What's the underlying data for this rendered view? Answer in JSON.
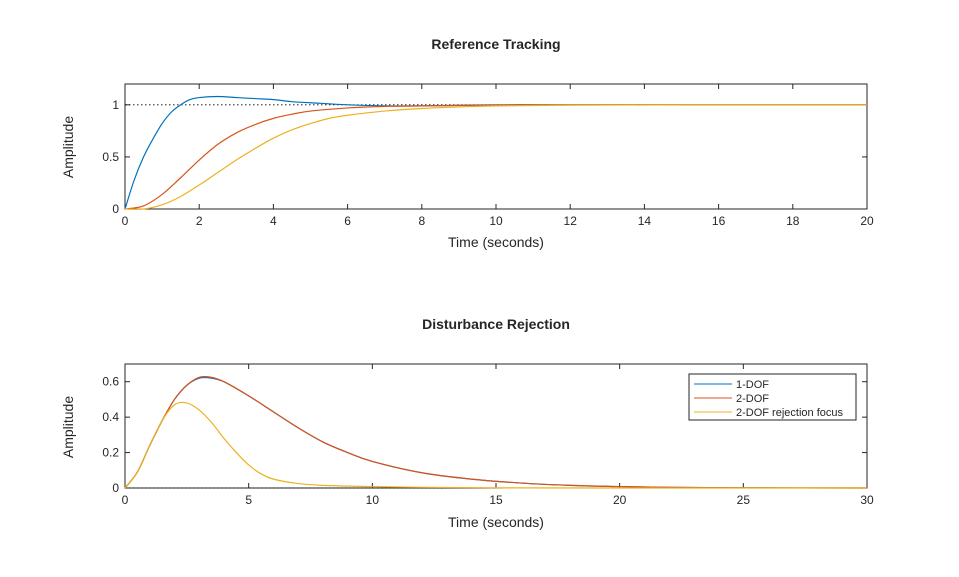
{
  "chart_data": [
    {
      "type": "line",
      "title": "Reference Tracking",
      "xlabel": "Time (seconds)",
      "ylabel": "Amplitude",
      "xlim": [
        0,
        20
      ],
      "ylim": [
        0,
        1.2
      ],
      "xticks": [
        "0",
        "2",
        "4",
        "6",
        "8",
        "10",
        "12",
        "14",
        "16",
        "18",
        "20"
      ],
      "yticks": [
        "0",
        "0.5",
        "1"
      ],
      "xtick_values": [
        0,
        2,
        4,
        6,
        8,
        10,
        12,
        14,
        16,
        18,
        20
      ],
      "ytick_values": [
        0,
        0.5,
        1
      ],
      "reference_line": 1,
      "series": [
        {
          "name": "1-DOF",
          "color": "#0072BD",
          "x": [
            0,
            0.25,
            0.5,
            0.75,
            1,
            1.25,
            1.5,
            1.75,
            2,
            2.5,
            3,
            3.5,
            4,
            4.5,
            5,
            6,
            7,
            8,
            10,
            12,
            15,
            20
          ],
          "y": [
            0,
            0.28,
            0.5,
            0.67,
            0.82,
            0.93,
            1.0,
            1.05,
            1.07,
            1.08,
            1.07,
            1.06,
            1.05,
            1.03,
            1.02,
            1.0,
            0.99,
            0.99,
            1.0,
            1.0,
            1.0,
            1.0
          ]
        },
        {
          "name": "2-DOF",
          "color": "#D95319",
          "x": [
            0,
            0.5,
            1,
            1.5,
            2,
            2.5,
            3,
            3.5,
            4,
            4.5,
            5,
            6,
            7,
            8,
            10,
            12,
            15,
            20
          ],
          "y": [
            0,
            0.03,
            0.14,
            0.3,
            0.47,
            0.62,
            0.73,
            0.81,
            0.87,
            0.91,
            0.94,
            0.97,
            0.985,
            0.99,
            0.997,
            1.0,
            1.0,
            1.0
          ]
        },
        {
          "name": "2-DOF rejection focus",
          "color": "#EDB120",
          "x": [
            0,
            0.5,
            1,
            1.5,
            2,
            2.5,
            3,
            3.5,
            4,
            4.5,
            5,
            5.5,
            6,
            7,
            8,
            9,
            10,
            12,
            15,
            20
          ],
          "y": [
            0,
            0.0,
            0.04,
            0.12,
            0.23,
            0.35,
            0.47,
            0.58,
            0.68,
            0.76,
            0.82,
            0.87,
            0.9,
            0.94,
            0.965,
            0.98,
            0.99,
            0.997,
            1.0,
            1.0
          ]
        }
      ]
    },
    {
      "type": "line",
      "title": "Disturbance Rejection",
      "xlabel": "Time (seconds)",
      "ylabel": "Amplitude",
      "xlim": [
        0,
        30
      ],
      "ylim": [
        0,
        0.7
      ],
      "xticks": [
        "0",
        "5",
        "10",
        "15",
        "20",
        "25",
        "30"
      ],
      "yticks": [
        "0",
        "0.2",
        "0.4",
        "0.6"
      ],
      "xtick_values": [
        0,
        5,
        10,
        15,
        20,
        25,
        30
      ],
      "ytick_values": [
        0,
        0.2,
        0.4,
        0.6
      ],
      "reference_line": 0,
      "legend": {
        "position": "top-right",
        "entries": [
          "1-DOF",
          "2-DOF",
          "2-DOF rejection focus"
        ]
      },
      "series": [
        {
          "name": "1-DOF",
          "color": "#0072BD",
          "x": [
            0,
            0.5,
            1,
            1.5,
            2,
            2.5,
            3,
            3.5,
            4,
            5,
            6,
            7,
            8,
            9,
            10,
            12,
            14,
            16,
            18,
            20,
            22,
            25,
            30
          ],
          "y": [
            0,
            0.09,
            0.24,
            0.38,
            0.5,
            0.58,
            0.62,
            0.62,
            0.6,
            0.52,
            0.43,
            0.34,
            0.26,
            0.2,
            0.15,
            0.086,
            0.05,
            0.028,
            0.015,
            0.008,
            0.004,
            0.001,
            0
          ]
        },
        {
          "name": "2-DOF",
          "color": "#D95319",
          "x": [
            0,
            0.5,
            1,
            1.5,
            2,
            2.5,
            3,
            3.5,
            4,
            5,
            6,
            7,
            8,
            9,
            10,
            12,
            14,
            16,
            18,
            20,
            22,
            25,
            30
          ],
          "y": [
            0,
            0.09,
            0.24,
            0.38,
            0.5,
            0.58,
            0.625,
            0.625,
            0.6,
            0.52,
            0.43,
            0.34,
            0.26,
            0.2,
            0.15,
            0.086,
            0.05,
            0.028,
            0.015,
            0.008,
            0.004,
            0.001,
            0
          ]
        },
        {
          "name": "2-DOF rejection focus",
          "color": "#EDB120",
          "x": [
            0,
            0.5,
            1,
            1.5,
            2,
            2.5,
            3,
            3.5,
            4,
            4.5,
            5,
            5.5,
            6,
            7,
            8,
            10,
            12,
            15,
            20,
            30
          ],
          "y": [
            0,
            0.09,
            0.24,
            0.38,
            0.47,
            0.48,
            0.44,
            0.37,
            0.28,
            0.2,
            0.13,
            0.08,
            0.05,
            0.025,
            0.015,
            0.008,
            0.004,
            0.001,
            0,
            0
          ]
        }
      ]
    }
  ]
}
